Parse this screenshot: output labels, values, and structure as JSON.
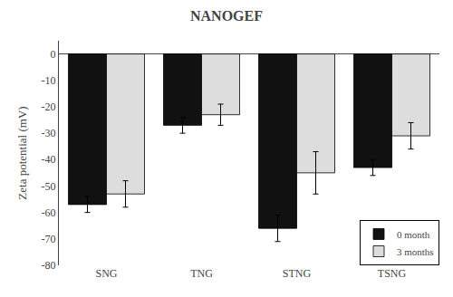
{
  "chart_data": {
    "type": "bar",
    "title": "NANOGEF",
    "ylabel": "Zeta potential (mV)",
    "categories": [
      "SNG",
      "TNG",
      "STNG",
      "TSNG"
    ],
    "series": [
      {
        "name": "0 month",
        "color": "#111111",
        "values": [
          -57,
          -27,
          -66,
          -43
        ],
        "errors": [
          3,
          3,
          5,
          3
        ]
      },
      {
        "name": "3 months",
        "color": "#dddddd",
        "values": [
          -53,
          -23,
          -45,
          -31
        ],
        "errors": [
          5,
          4,
          8,
          5
        ]
      }
    ],
    "ylim": [
      -80,
      5
    ],
    "yticks": [
      0,
      -10,
      -20,
      -30,
      -40,
      -50,
      -60,
      -70,
      -80
    ],
    "grid": false,
    "legend": "lower right"
  }
}
